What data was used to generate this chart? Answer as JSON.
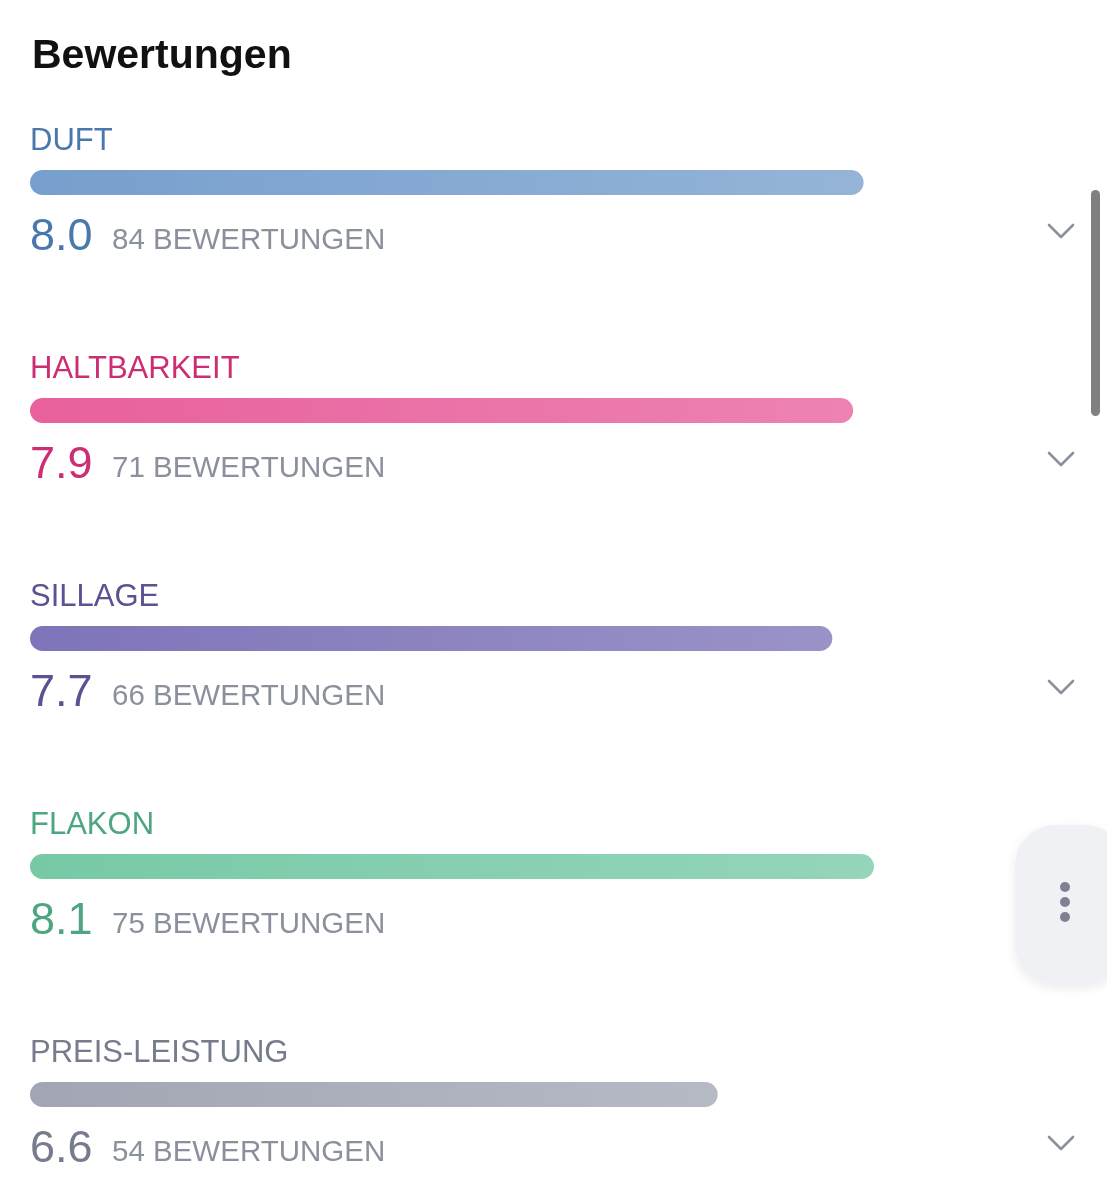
{
  "chart_data": {
    "type": "bar",
    "orientation": "horizontal",
    "title": "Bewertungen",
    "categories": [
      "DUFT",
      "HALTBARKEIT",
      "SILLAGE",
      "FLAKON",
      "PREIS-LEISTUNG"
    ],
    "values": [
      8.0,
      7.9,
      7.7,
      8.1,
      6.6
    ],
    "value_labels": [
      "8.0",
      "7.9",
      "7.7",
      "8.1",
      "6.6"
    ],
    "colors": [
      "#779fcd",
      "#e8609c",
      "#7e74b9",
      "#77c9a6",
      "#a2a6b4"
    ],
    "annotations": [
      "84 BEWERTUNGEN",
      "71 BEWERTUNGEN",
      "66 BEWERTUNGEN",
      "75 BEWERTUNGEN",
      "54 BEWERTUNGEN"
    ]
  }
}
